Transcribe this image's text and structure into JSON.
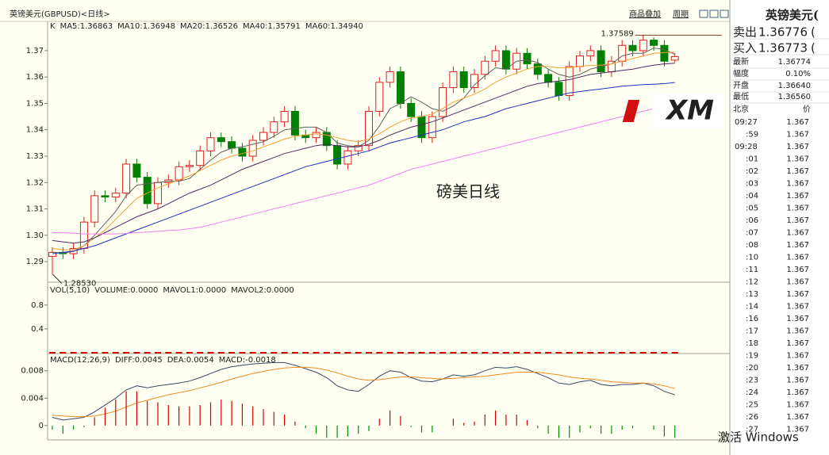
{
  "header": {
    "title": "英镑美元(GBPUSD)<日线>",
    "links": [
      "商品叠加",
      "周期"
    ]
  },
  "chart_data": [
    {
      "type": "candlestick",
      "label": "K",
      "watermark": "磅美日线",
      "logo": "XM",
      "ylim": [
        1.2825,
        1.3811
      ],
      "yticks": [
        1.29,
        {
          "value": 1.3,
          "label": "1.30"
        },
        1.31,
        1.32,
        1.33,
        1.34,
        1.35,
        1.36,
        1.37
      ],
      "annotations": [
        {
          "index": 56,
          "value": 1.37589,
          "label": "1.37589"
        },
        {
          "index": 0,
          "value": 1.2853,
          "label": "1.28530"
        }
      ],
      "up_color": "#e02020",
      "down_color": "#008000",
      "series": [
        {
          "open": [
            1.292,
            1.2935,
            1.293,
            1.295,
            1.305,
            1.315,
            1.3145,
            1.316,
            1.327,
            1.322,
            1.312,
            1.32,
            1.321,
            1.326,
            1.3265,
            1.332,
            1.337,
            1.3355,
            1.333,
            1.33,
            1.336,
            1.339,
            1.343,
            1.347,
            1.338,
            1.337,
            1.339,
            1.334,
            1.327,
            1.332,
            1.334,
            1.347,
            1.358,
            1.362,
            1.35,
            1.345,
            1.337,
            1.345,
            1.356,
            1.362,
            1.356,
            1.361,
            1.366,
            1.37,
            1.363,
            1.369,
            1.365,
            1.361,
            1.358,
            1.353,
            1.364,
            1.368,
            1.37,
            1.362,
            1.366,
            1.372,
            1.37,
            1.374,
            1.372,
            1.3664
          ],
          "high": [
            1.2955,
            1.2955,
            1.297,
            1.307,
            1.317,
            1.317,
            1.318,
            1.329,
            1.329,
            1.324,
            1.322,
            1.323,
            1.328,
            1.3285,
            1.334,
            1.339,
            1.339,
            1.3375,
            1.335,
            1.338,
            1.341,
            1.345,
            1.349,
            1.349,
            1.34,
            1.341,
            1.341,
            1.336,
            1.334,
            1.336,
            1.349,
            1.36,
            1.364,
            1.364,
            1.352,
            1.347,
            1.347,
            1.358,
            1.364,
            1.364,
            1.363,
            1.368,
            1.372,
            1.372,
            1.371,
            1.371,
            1.367,
            1.363,
            1.36,
            1.366,
            1.37,
            1.372,
            1.372,
            1.368,
            1.374,
            1.374,
            1.37589,
            1.375,
            1.374,
            1.369
          ],
          "low": [
            1.2853,
            1.291,
            1.291,
            1.293,
            1.303,
            1.3125,
            1.3125,
            1.314,
            1.32,
            1.31,
            1.31,
            1.318,
            1.319,
            1.324,
            1.3245,
            1.33,
            1.3335,
            1.331,
            1.328,
            1.328,
            1.334,
            1.337,
            1.341,
            1.336,
            1.335,
            1.335,
            1.332,
            1.325,
            1.325,
            1.33,
            1.332,
            1.345,
            1.356,
            1.348,
            1.343,
            1.335,
            1.335,
            1.343,
            1.354,
            1.354,
            1.354,
            1.359,
            1.364,
            1.361,
            1.361,
            1.363,
            1.359,
            1.356,
            1.351,
            1.351,
            1.362,
            1.366,
            1.36,
            1.36,
            1.364,
            1.368,
            1.368,
            1.37,
            1.364,
            1.3656
          ],
          "close": [
            1.2935,
            1.293,
            1.295,
            1.305,
            1.315,
            1.3145,
            1.316,
            1.327,
            1.322,
            1.312,
            1.32,
            1.321,
            1.326,
            1.3265,
            1.332,
            1.337,
            1.3355,
            1.333,
            1.33,
            1.336,
            1.339,
            1.343,
            1.347,
            1.338,
            1.337,
            1.339,
            1.334,
            1.327,
            1.332,
            1.334,
            1.347,
            1.358,
            1.362,
            1.35,
            1.345,
            1.337,
            1.345,
            1.356,
            1.362,
            1.356,
            1.361,
            1.366,
            1.37,
            1.363,
            1.369,
            1.365,
            1.361,
            1.358,
            1.353,
            1.364,
            1.368,
            1.37,
            1.362,
            1.366,
            1.372,
            1.37,
            1.374,
            1.372,
            1.366,
            1.36774
          ]
        },
        {
          "name": "MA5:1.36863",
          "color": "#606060",
          "values": [
            1.2935,
            1.2933,
            1.2938,
            1.296,
            1.3,
            1.3045,
            1.309,
            1.315,
            1.319,
            1.3195,
            1.32,
            1.3205,
            1.3205,
            1.3215,
            1.325,
            1.3285,
            1.3315,
            1.333,
            1.3335,
            1.3345,
            1.3355,
            1.3375,
            1.34,
            1.3405,
            1.341,
            1.341,
            1.339,
            1.335,
            1.334,
            1.3335,
            1.336,
            1.3415,
            1.348,
            1.35,
            1.3525,
            1.3505,
            1.348,
            1.347,
            1.349,
            1.352,
            1.357,
            1.3605,
            1.3635,
            1.363,
            1.366,
            1.3665,
            1.3655,
            1.363,
            1.361,
            1.36,
            1.361,
            1.363,
            1.364,
            1.365,
            1.368,
            1.369,
            1.369,
            1.371,
            1.3705,
            1.36863
          ]
        },
        {
          "name": "MA10:1.36948",
          "color": "#f0a030",
          "values": [
            1.295,
            1.2945,
            1.2945,
            1.296,
            1.299,
            1.302,
            1.306,
            1.31,
            1.314,
            1.316,
            1.318,
            1.3195,
            1.321,
            1.3225,
            1.3245,
            1.3265,
            1.3285,
            1.33,
            1.331,
            1.332,
            1.3335,
            1.335,
            1.3365,
            1.3375,
            1.338,
            1.3385,
            1.338,
            1.337,
            1.336,
            1.3355,
            1.3365,
            1.3385,
            1.341,
            1.343,
            1.3445,
            1.345,
            1.346,
            1.348,
            1.3505,
            1.352,
            1.3535,
            1.3555,
            1.358,
            1.36,
            1.3615,
            1.363,
            1.364,
            1.364,
            1.3635,
            1.3635,
            1.364,
            1.3645,
            1.3645,
            1.365,
            1.366,
            1.367,
            1.368,
            1.369,
            1.3693,
            1.36948
          ]
        },
        {
          "name": "MA20:1.36526",
          "color": "#502860",
          "values": [
            1.298,
            1.2975,
            1.297,
            1.2975,
            1.299,
            1.301,
            1.303,
            1.305,
            1.307,
            1.3085,
            1.31,
            1.312,
            1.314,
            1.316,
            1.3175,
            1.319,
            1.321,
            1.323,
            1.325,
            1.3265,
            1.328,
            1.3295,
            1.331,
            1.332,
            1.333,
            1.334,
            1.3345,
            1.334,
            1.3335,
            1.3335,
            1.3345,
            1.336,
            1.338,
            1.3395,
            1.341,
            1.342,
            1.343,
            1.3445,
            1.346,
            1.3475,
            1.349,
            1.3505,
            1.352,
            1.3535,
            1.355,
            1.3565,
            1.3575,
            1.358,
            1.3585,
            1.359,
            1.36,
            1.361,
            1.3615,
            1.362,
            1.3625,
            1.363,
            1.3638,
            1.3645,
            1.365,
            1.36526
          ]
        },
        {
          "name": "MA40:1.35791",
          "color": "#2030c0",
          "values": [
            1.293,
            1.2935,
            1.294,
            1.295,
            1.296,
            1.2975,
            1.299,
            1.3005,
            1.302,
            1.3035,
            1.305,
            1.3065,
            1.308,
            1.3095,
            1.311,
            1.3125,
            1.314,
            1.3155,
            1.317,
            1.3185,
            1.32,
            1.3215,
            1.323,
            1.3245,
            1.326,
            1.327,
            1.328,
            1.329,
            1.33,
            1.331,
            1.332,
            1.3335,
            1.335,
            1.336,
            1.337,
            1.338,
            1.339,
            1.34,
            1.3415,
            1.343,
            1.344,
            1.345,
            1.3465,
            1.348,
            1.349,
            1.35,
            1.351,
            1.352,
            1.353,
            1.354,
            1.3545,
            1.355,
            1.3555,
            1.356,
            1.3565,
            1.3568,
            1.3571,
            1.3573,
            1.3575,
            1.35791
          ]
        },
        {
          "name": "MA60:1.34940",
          "color": "#f080f0",
          "values": [
            1.301,
            1.301,
            1.3008,
            1.3005,
            1.3005,
            1.3005,
            1.3005,
            1.3007,
            1.301,
            1.3012,
            1.3015,
            1.3018,
            1.302,
            1.3025,
            1.303,
            1.304,
            1.305,
            1.306,
            1.307,
            1.308,
            1.309,
            1.31,
            1.311,
            1.312,
            1.313,
            1.314,
            1.315,
            1.316,
            1.317,
            1.318,
            1.319,
            1.3205,
            1.322,
            1.3235,
            1.325,
            1.326,
            1.327,
            1.328,
            1.329,
            1.33,
            1.331,
            1.332,
            1.333,
            1.334,
            1.335,
            1.336,
            1.337,
            1.338,
            1.339,
            1.34,
            1.341,
            1.342,
            1.343,
            1.344,
            1.345,
            1.346,
            1.347,
            1.348,
            1.3488,
            1.3494
          ]
        }
      ]
    },
    {
      "type": "volume",
      "label": "VOL(5,10)",
      "ylim": [
        0,
        1.17
      ],
      "yticks": [
        0.8,
        0.4
      ],
      "color": "#d00000",
      "legend": [
        {
          "name": "VOLUME:0.0000",
          "color": "#202020"
        },
        {
          "name": "MAVOL1:0.0000",
          "color": "#202020"
        },
        {
          "name": "MAVOL2:0.0000",
          "color": "#f0a030"
        }
      ],
      "values": [
        0,
        0,
        0,
        0,
        0,
        0,
        0,
        0,
        0,
        0,
        0,
        0,
        0,
        0,
        0,
        0,
        0,
        0,
        0,
        0,
        0,
        0,
        0,
        0,
        0,
        0,
        0,
        0,
        0,
        0,
        0,
        0,
        0,
        0,
        0,
        0,
        0,
        0,
        0,
        0,
        0,
        0,
        0,
        0,
        0,
        0,
        0,
        0,
        0,
        0,
        0,
        0,
        0,
        0,
        0,
        0,
        0,
        0,
        0,
        0
      ]
    },
    {
      "type": "macd",
      "label": "MACD(12,26,9)",
      "ylim": [
        -0.0021,
        0.0104
      ],
      "yticks": [
        0.008,
        0.004,
        0
      ],
      "series": [
        {
          "name": "DIFF:0.0045",
          "color": "#3a4a66",
          "values": [
            0.0012,
            0.0008,
            0.001,
            0.0012,
            0.002,
            0.003,
            0.004,
            0.0052,
            0.0058,
            0.0055,
            0.0058,
            0.006,
            0.0062,
            0.0065,
            0.007,
            0.0076,
            0.0082,
            0.0086,
            0.0088,
            0.009,
            0.0091,
            0.0092,
            0.0092,
            0.0088,
            0.0083,
            0.0078,
            0.007,
            0.0058,
            0.0052,
            0.005,
            0.006,
            0.0072,
            0.008,
            0.0078,
            0.007,
            0.0065,
            0.0064,
            0.0068,
            0.0074,
            0.0072,
            0.0074,
            0.008,
            0.0085,
            0.0084,
            0.0086,
            0.0082,
            0.0076,
            0.007,
            0.0062,
            0.006,
            0.0064,
            0.0066,
            0.006,
            0.0058,
            0.006,
            0.006,
            0.0062,
            0.0058,
            0.005,
            0.0045
          ]
        },
        {
          "name": "DEA:0.0054",
          "color": "#f08a20",
          "values": [
            0.0015,
            0.0014,
            0.0013,
            0.0013,
            0.0014,
            0.0017,
            0.0021,
            0.0027,
            0.0033,
            0.0037,
            0.0041,
            0.0045,
            0.0048,
            0.0051,
            0.0055,
            0.0059,
            0.0063,
            0.0068,
            0.0072,
            0.0076,
            0.0079,
            0.0082,
            0.0084,
            0.0085,
            0.0085,
            0.0084,
            0.0081,
            0.0077,
            0.0072,
            0.0068,
            0.0066,
            0.0067,
            0.0069,
            0.0071,
            0.0071,
            0.007,
            0.0069,
            0.0068,
            0.0069,
            0.007,
            0.0071,
            0.0072,
            0.0074,
            0.0076,
            0.0078,
            0.0078,
            0.0078,
            0.0076,
            0.0074,
            0.0071,
            0.0069,
            0.0068,
            0.0066,
            0.0064,
            0.0063,
            0.0062,
            0.0062,
            0.0061,
            0.0058,
            0.0054
          ]
        },
        {
          "name": "MACD:-0.0018",
          "color": "#d00000",
          "negative_color": "#009000",
          "style": "bar",
          "values": [
            -0.0006,
            -0.0012,
            -0.0006,
            -0.0002,
            0.0012,
            0.0026,
            0.0038,
            0.005,
            0.005,
            0.0036,
            0.0034,
            0.003,
            0.0028,
            0.0028,
            0.003,
            0.0034,
            0.0038,
            0.0036,
            0.0032,
            0.0028,
            0.0024,
            0.002,
            0.0016,
            0.0006,
            -0.0004,
            -0.0012,
            -0.0018,
            -0.0018,
            -0.0016,
            -0.0012,
            -0.0008,
            0.001,
            0.0022,
            0.0014,
            -0.0002,
            -0.001,
            -0.001,
            0.0,
            0.001,
            0.0004,
            0.0006,
            0.0016,
            0.0022,
            0.0016,
            0.0016,
            0.0008,
            -0.0004,
            -0.0012,
            -0.0018,
            -0.0018,
            -0.001,
            -0.0004,
            -0.0012,
            -0.0012,
            -0.0006,
            -0.0004,
            0.0,
            -0.0006,
            -0.0016,
            -0.0018
          ]
        }
      ]
    }
  ],
  "quote_panel": {
    "title": "英镑美元(",
    "rows": [
      {
        "label": "卖出",
        "value": 1.36776,
        "suffix": "("
      },
      {
        "label": "买入",
        "value": 1.36773,
        "suffix": "("
      },
      {
        "label": "最新",
        "value": 1.36774
      },
      {
        "label": "幅度",
        "value": "0.10%"
      },
      {
        "label": "开盘",
        "value": "1.36640"
      },
      {
        "label": "最低",
        "value": "1.36560"
      }
    ],
    "columns": [
      "北京",
      "价"
    ],
    "ticks": [
      {
        "time": "09:27",
        "price": 1.367
      },
      {
        "time": ":59",
        "price": 1.367
      },
      {
        "time": "09:28",
        "price": 1.367
      },
      {
        "time": ":01",
        "price": 1.367
      },
      {
        "time": ":02",
        "price": 1.367
      },
      {
        "time": ":03",
        "price": 1.367
      },
      {
        "time": ":04",
        "price": 1.367
      },
      {
        "time": ":05",
        "price": 1.367
      },
      {
        "time": ":06",
        "price": 1.367
      },
      {
        "time": ":07",
        "price": 1.367
      },
      {
        "time": ":08",
        "price": 1.367
      },
      {
        "time": ":10",
        "price": 1.367
      },
      {
        "time": ":11",
        "price": 1.367
      },
      {
        "time": ":12",
        "price": 1.367
      },
      {
        "time": ":13",
        "price": 1.367
      },
      {
        "time": ":14",
        "price": 1.367
      },
      {
        "time": ":16",
        "price": 1.367
      },
      {
        "time": ":17",
        "price": 1.367
      },
      {
        "time": ":18",
        "price": 1.367
      },
      {
        "time": ":19",
        "price": 1.367
      },
      {
        "time": ":20",
        "price": 1.367
      },
      {
        "time": ":23",
        "price": 1.367
      },
      {
        "time": ":24",
        "price": 1.367
      },
      {
        "time": ":25",
        "price": 1.367
      },
      {
        "time": ":26",
        "price": 1.367
      },
      {
        "time": ":27",
        "price": 1.367
      }
    ]
  },
  "system_watermark": "激活 Windows"
}
